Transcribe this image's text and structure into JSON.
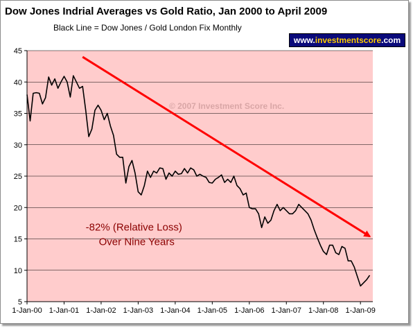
{
  "chart_data": {
    "type": "line",
    "title": "Dow Jones Indrial Averages vs Gold Ratio, Jan 2000 to April 2009",
    "subtitle": "Black Line = Dow Jones / Gold London Fix Monthly",
    "watermark": "© 2007 Investment Score Inc.",
    "annotation_lines": [
      "-82% (Relative Loss)",
      "Over Nine Years"
    ],
    "badge": {
      "prefix": "www.",
      "brand": "investmentscore",
      "suffix": ".com"
    },
    "ylim": [
      5,
      45
    ],
    "yticks": [
      5,
      10,
      15,
      20,
      25,
      30,
      35,
      40,
      45
    ],
    "xticks": [
      "1-Jan-00",
      "1-Jan-01",
      "1-Jan-02",
      "1-Jan-03",
      "1-Jan-04",
      "1-Jan-05",
      "1-Jan-06",
      "1-Jan-07",
      "1-Jan-08",
      "1-Jan-09"
    ],
    "grid": true,
    "colors": {
      "plot_background": "#ffcccc",
      "series_line": "#000000",
      "trend_arrow": "#ff0000",
      "annotation_text": "#8b0000",
      "watermark_text": "#d9a6a6"
    },
    "x_start": "2000-01",
    "series": [
      {
        "values": [
          38.0,
          33.8,
          38.2,
          38.3,
          38.2,
          36.5,
          37.5,
          40.8,
          39.5,
          40.5,
          39.0,
          40.0,
          40.9,
          40.0,
          37.6,
          41.0,
          40.0,
          39.0,
          39.3,
          35.5,
          31.3,
          32.5,
          35.5,
          36.3,
          35.5,
          34.0,
          35.0,
          33.0,
          31.5,
          28.5,
          28.0,
          28.0,
          23.9,
          26.5,
          27.5,
          25.5,
          22.5,
          22.0,
          23.5,
          25.8,
          24.8,
          25.8,
          25.5,
          26.3,
          26.2,
          24.5,
          25.5,
          25.0,
          25.8,
          25.3,
          25.4,
          26.2,
          25.5,
          26.3,
          26.0,
          25.0,
          25.3,
          25.0,
          24.8,
          24.0,
          23.9,
          24.5,
          24.8,
          25.2,
          24.0,
          24.5,
          24.0,
          25.0,
          23.5,
          23.0,
          22.0,
          22.3,
          20.0,
          19.8,
          19.8,
          19.0,
          16.8,
          18.5,
          17.5,
          18.0,
          19.5,
          20.5,
          19.5,
          20.0,
          19.5,
          19.0,
          19.0,
          19.5,
          20.5,
          20.0,
          19.5,
          19.0,
          18.0,
          16.5,
          15.2,
          14.0,
          13.0,
          12.5,
          14.0,
          14.0,
          12.8,
          12.5,
          13.8,
          13.5,
          11.5,
          11.5,
          10.5,
          9.0,
          7.5,
          8.0,
          8.5,
          9.2
        ]
      }
    ],
    "trend_arrow": {
      "start": [
        "2001-07",
        44.0
      ],
      "end": [
        "2009-04",
        15.4
      ]
    },
    "text_anchors": {
      "watermark": [
        "2003-11",
        35.7
      ],
      "annotation": [
        "2001-08",
        16.3
      ]
    }
  }
}
